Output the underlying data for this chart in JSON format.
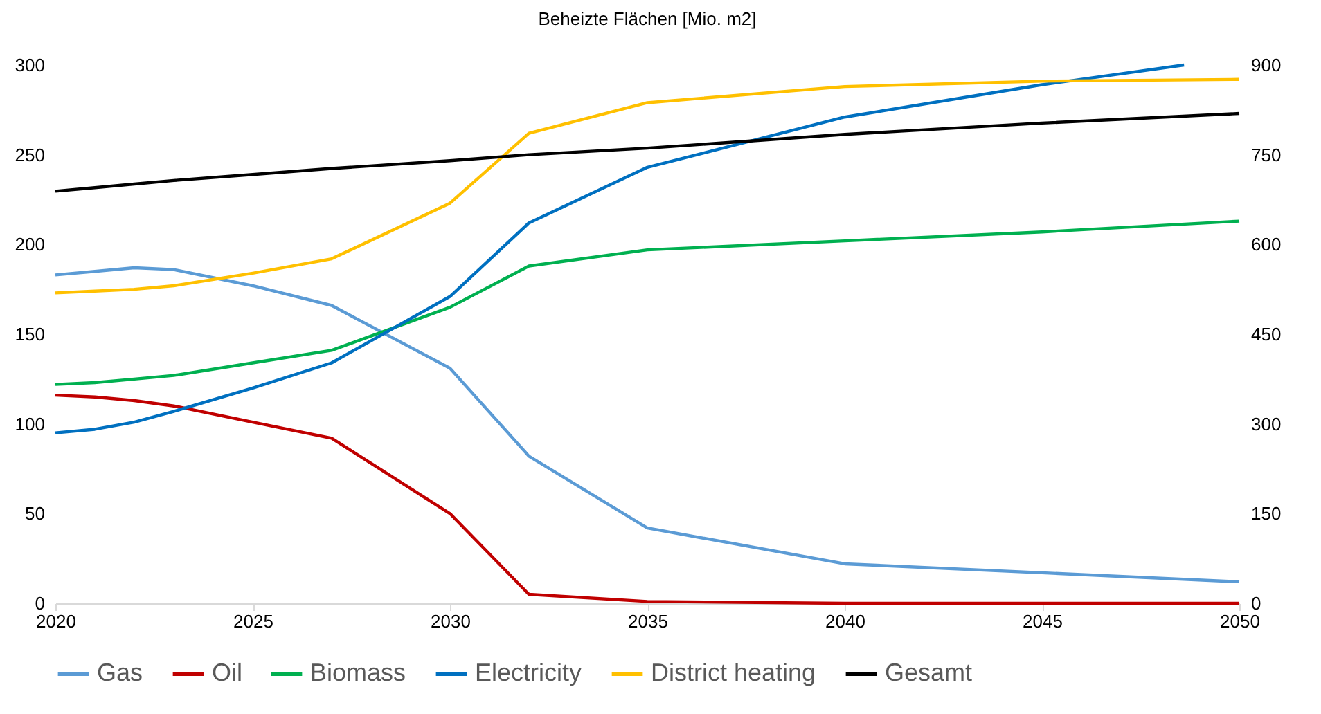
{
  "chart_data": {
    "type": "line",
    "title": "Beheizte Flächen [Mio. m2]",
    "x": [
      2020,
      2021,
      2022,
      2023,
      2025,
      2027,
      2030,
      2032,
      2035,
      2040,
      2045,
      2050
    ],
    "series": [
      {
        "name": "Gas",
        "color": "#5b9bd5",
        "values": [
          183,
          185,
          187,
          186,
          177,
          166,
          131,
          82,
          42,
          22,
          17,
          12
        ]
      },
      {
        "name": "Oil",
        "color": "#c00000",
        "values": [
          116,
          115,
          113,
          110,
          101,
          92,
          50,
          5,
          1,
          0,
          0,
          0
        ]
      },
      {
        "name": "Biomass",
        "color": "#00b050",
        "values": [
          122,
          123,
          125,
          127,
          134,
          141,
          165,
          188,
          197,
          202,
          207,
          213
        ]
      },
      {
        "name": "Electricity",
        "color": "#0070c0",
        "x": [
          2020,
          2021,
          2022,
          2023,
          2025,
          2027,
          2030,
          2032,
          2035,
          2040,
          2045,
          2048.6
        ],
        "values": [
          95,
          97,
          101,
          107,
          120,
          134,
          171,
          212,
          243,
          271,
          289,
          300
        ]
      },
      {
        "name": "District heating",
        "color": "#ffc000",
        "values": [
          173,
          174,
          175,
          177,
          184,
          192,
          223,
          262,
          279,
          288,
          291,
          292
        ]
      },
      {
        "name": "Gesamt",
        "color": "#000000",
        "axis": "y2",
        "values": [
          689,
          695,
          701,
          707,
          717,
          727,
          740,
          750,
          761,
          784,
          803,
          819
        ]
      }
    ],
    "xlim": [
      2020,
      2050
    ],
    "xticks": [
      2020,
      2025,
      2030,
      2035,
      2040,
      2045,
      2050
    ],
    "ylim": [
      0,
      300
    ],
    "yticks": [
      0,
      50,
      100,
      150,
      200,
      250,
      300
    ],
    "y2lim": [
      0,
      900
    ],
    "y2ticks": [
      0,
      150,
      300,
      450,
      600,
      750,
      900
    ],
    "grid": false,
    "legend": "bottom",
    "marker": "none",
    "line_style": "solid"
  }
}
